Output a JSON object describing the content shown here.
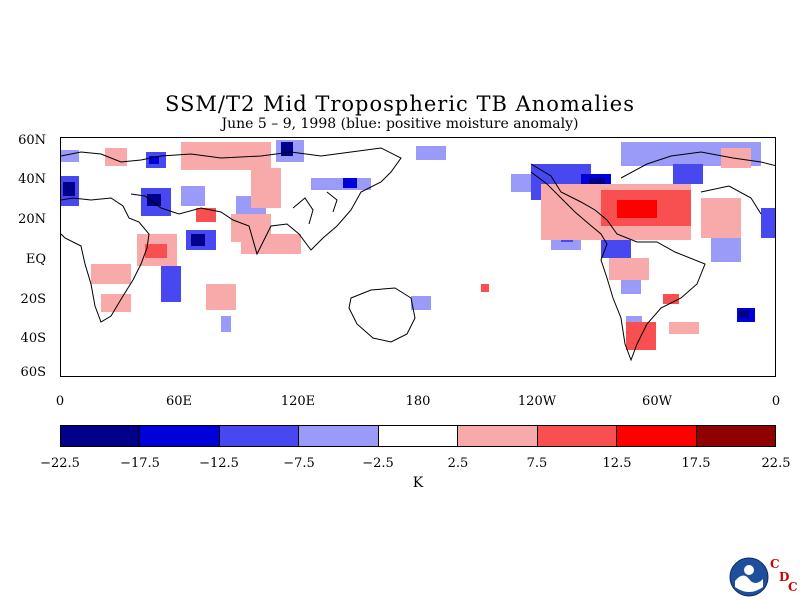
{
  "title": "SSM/T2 Mid Tropospheric TB Anomalies",
  "subtitle": "June 5 – 9, 1998 (blue: positive moisture anomaly)",
  "lat_labels": [
    "60N",
    "40N",
    "20N",
    "EQ",
    "20S",
    "40S",
    "60S"
  ],
  "lon_labels": [
    "0",
    "60E",
    "120E",
    "180",
    "120W",
    "60W",
    "0"
  ],
  "colorbar": {
    "unit": "K",
    "ticks": [
      "−22.5",
      "−17.5",
      "−12.5",
      "−7.5",
      "−2.5",
      "2.5",
      "7.5",
      "12.5",
      "17.5",
      "22.5"
    ],
    "colors": [
      "#00008b",
      "#0000d8",
      "#4848f0",
      "#9a9af8",
      "#ffffff",
      "#f8aaaa",
      "#f85050",
      "#ff0000",
      "#900000"
    ]
  },
  "logo": {
    "name": "NOAA",
    "letters": [
      "C",
      "D",
      "C"
    ]
  }
}
